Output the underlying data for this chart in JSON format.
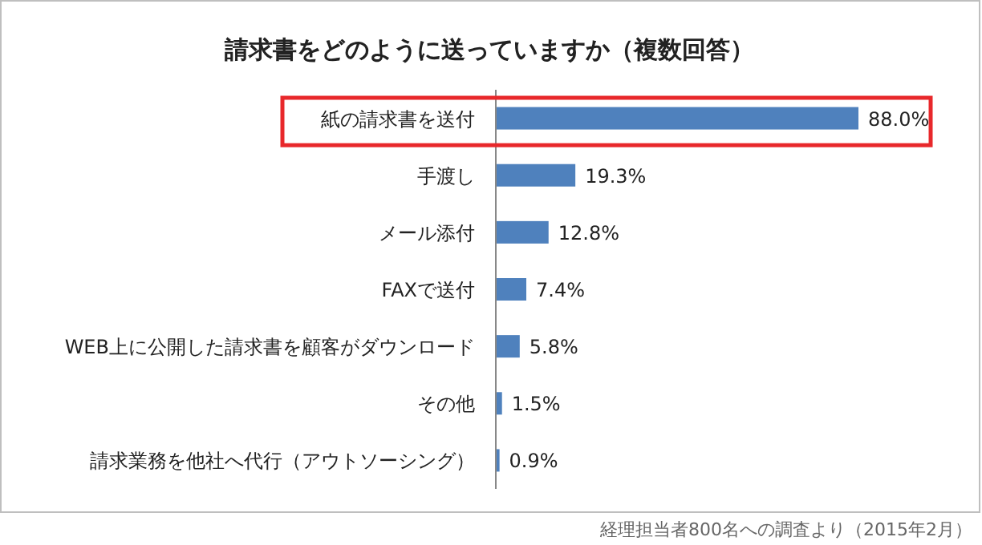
{
  "chart_data": {
    "type": "bar",
    "orientation": "horizontal",
    "title": "請求書をどのように送っていますか（複数回答）",
    "categories": [
      "紙の請求書を送付",
      "手渡し",
      "メール添付",
      "FAXで送付",
      "WEB上に公開した請求書を顧客がダウンロード",
      "その他",
      "請求業務を他社へ代行（アウトソーシング）"
    ],
    "values": [
      88.0,
      19.3,
      12.8,
      7.4,
      5.8,
      1.5,
      0.9
    ],
    "value_labels": [
      "88.0%",
      "19.3%",
      "12.8%",
      "7.4%",
      "5.8%",
      "1.5%",
      "0.9%"
    ],
    "color": "#4f81bd",
    "annotations": [
      "経理担当者800名への調査より（2015年2月）"
    ]
  }
}
